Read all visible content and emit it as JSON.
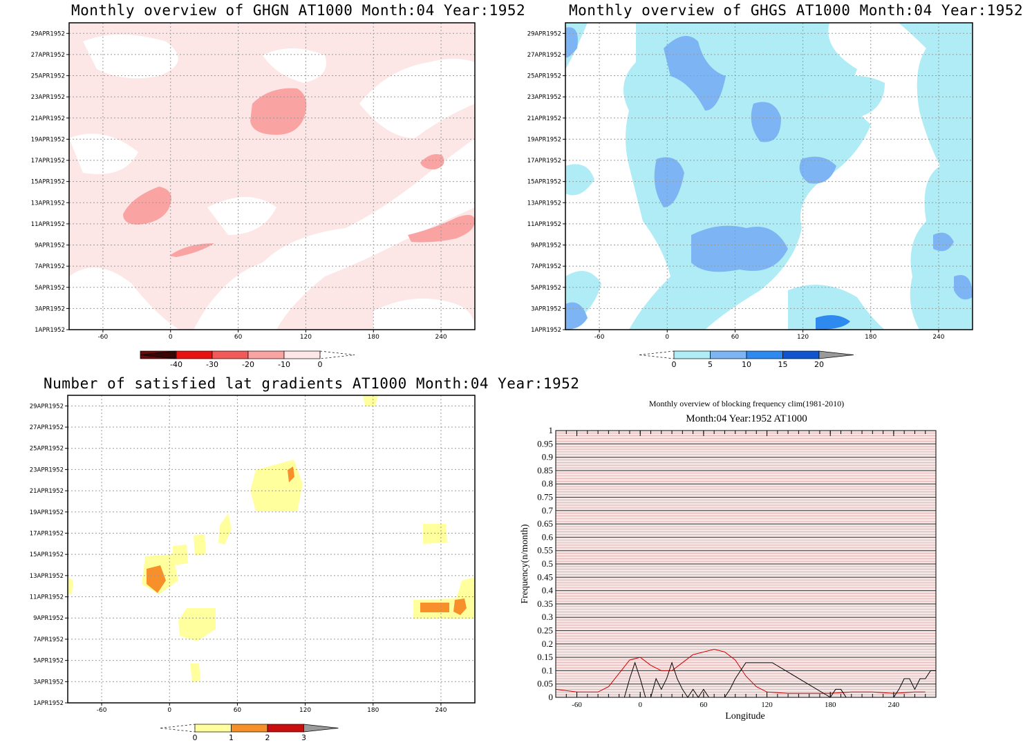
{
  "panels": {
    "tl": {
      "title": "Monthly overview of GHGN AT1000 Month:04 Year:1952",
      "colorbar": {
        "labels": [
          "-40",
          "-30",
          "-20",
          "-10",
          "0"
        ],
        "colors": [
          "#6b0a0a",
          "#e8120f",
          "#f25a5a",
          "#f9a3a3",
          "#fde6e6"
        ]
      }
    },
    "tr": {
      "title": "Monthly overview of GHGS AT1000 Month:04 Year:1952",
      "colorbar": {
        "labels": [
          "0",
          "5",
          "10",
          "15",
          "20"
        ],
        "colors": [
          "#b0ecf5",
          "#7db5f4",
          "#2f8af0",
          "#1055cf",
          "#9a9a9a"
        ]
      }
    },
    "bl": {
      "title": "Number of satisfied lat gradients AT1000 Month:04 Year:1952",
      "colorbar": {
        "labels": [
          "0",
          "1",
          "2",
          "3"
        ],
        "colors": [
          "#ffff9e",
          "#f7902a",
          "#c80e0e",
          "#9a9a9a"
        ]
      }
    },
    "br": {
      "title1": "Monthly overview of blocking frequency clim(1981-2010)",
      "title2": "Month:04 Year:1952  AT1000"
    }
  },
  "axes": {
    "lon_ticks": [
      "-60",
      "0",
      "60",
      "120",
      "180",
      "240"
    ],
    "date_ticks": [
      "1APR1952",
      "3APR1952",
      "5APR1952",
      "7APR1952",
      "9APR1952",
      "11APR1952",
      "13APR1952",
      "15APR1952",
      "17APR1952",
      "19APR1952",
      "21APR1952",
      "23APR1952",
      "25APR1952",
      "27APR1952",
      "29APR1952"
    ]
  },
  "chart_data": [
    {
      "type": "heatmap",
      "title": "Monthly overview of GHGN AT1000 Month:04 Year:1952",
      "xlim": [
        -90,
        270
      ],
      "x_ticks": [
        -60,
        0,
        60,
        120,
        180,
        240
      ],
      "y_ticks": [
        "1APR1952",
        "3APR1952",
        "5APR1952",
        "7APR1952",
        "9APR1952",
        "11APR1952",
        "13APR1952",
        "15APR1952",
        "17APR1952",
        "19APR1952",
        "21APR1952",
        "23APR1952",
        "25APR1952",
        "27APR1952",
        "29APR1952"
      ],
      "colorbar": [
        -40,
        -30,
        -20,
        -10,
        0
      ]
    },
    {
      "type": "heatmap",
      "title": "Monthly overview of GHGS AT1000 Month:04 Year:1952",
      "xlim": [
        -90,
        270
      ],
      "x_ticks": [
        -60,
        0,
        60,
        120,
        180,
        240
      ],
      "colorbar": [
        0,
        5,
        10,
        15,
        20
      ]
    },
    {
      "type": "heatmap",
      "title": "Number of satisfied lat gradients AT1000 Month:04 Year:1952",
      "xlim": [
        -90,
        270
      ],
      "x_ticks": [
        -60,
        0,
        60,
        120,
        180,
        240
      ],
      "colorbar": [
        0,
        1,
        2,
        3
      ]
    },
    {
      "type": "line",
      "title": "Monthly overview of blocking frequency clim(1981-2010)",
      "subtitle": "Month:04 Year:1952  AT1000",
      "xlabel": "Longitude",
      "ylabel": "Frequency(n/month)",
      "xlim": [
        -80,
        280
      ],
      "ylim": [
        0,
        1
      ],
      "x_ticks": [
        -60,
        0,
        60,
        120,
        180,
        240
      ],
      "y_ticks": [
        "0",
        "0.05",
        "0.1",
        "0.15",
        "0.2",
        "0.25",
        "0.3",
        "0.35",
        "0.4",
        "0.45",
        "0.5",
        "0.55",
        "0.6",
        "0.65",
        "0.7",
        "0.75",
        "0.8",
        "0.85",
        "0.9",
        "0.95",
        "1"
      ],
      "series": [
        {
          "color": "#cc0000",
          "x": [
            -80,
            -60,
            -40,
            -30,
            -20,
            -10,
            0,
            10,
            20,
            30,
            40,
            50,
            60,
            70,
            80,
            90,
            100,
            110,
            120,
            140,
            160,
            180,
            200,
            220,
            240,
            260,
            270
          ],
          "y": [
            0.03,
            0.02,
            0.02,
            0.04,
            0.09,
            0.14,
            0.15,
            0.12,
            0.1,
            0.1,
            0.13,
            0.16,
            0.17,
            0.18,
            0.17,
            0.14,
            0.08,
            0.04,
            0.02,
            0.015,
            0.015,
            0.015,
            0.02,
            0.02,
            0.015,
            0.02,
            0.02
          ]
        },
        {
          "color": "#000000",
          "x": [
            -80,
            -20,
            -15,
            -10,
            -5,
            0,
            5,
            10,
            15,
            20,
            25,
            30,
            35,
            40,
            45,
            50,
            55,
            60,
            65,
            70,
            80,
            85,
            90,
            95,
            100,
            105,
            110,
            115,
            120,
            125,
            180,
            185,
            190,
            195,
            240,
            245,
            250,
            255,
            260,
            265,
            270,
            275,
            280
          ],
          "y": [
            0,
            0,
            0,
            0.07,
            0.13,
            0.07,
            0,
            0,
            0.07,
            0.03,
            0.07,
            0.13,
            0.07,
            0.03,
            0,
            0.03,
            0,
            0.03,
            0,
            0,
            0,
            0.03,
            0.07,
            0.1,
            0.13,
            0.13,
            0.13,
            0.13,
            0.13,
            0.13,
            0,
            0.03,
            0.03,
            0,
            0,
            0.03,
            0.07,
            0.07,
            0.03,
            0.07,
            0.07,
            0.1,
            0.1
          ]
        }
      ]
    }
  ]
}
